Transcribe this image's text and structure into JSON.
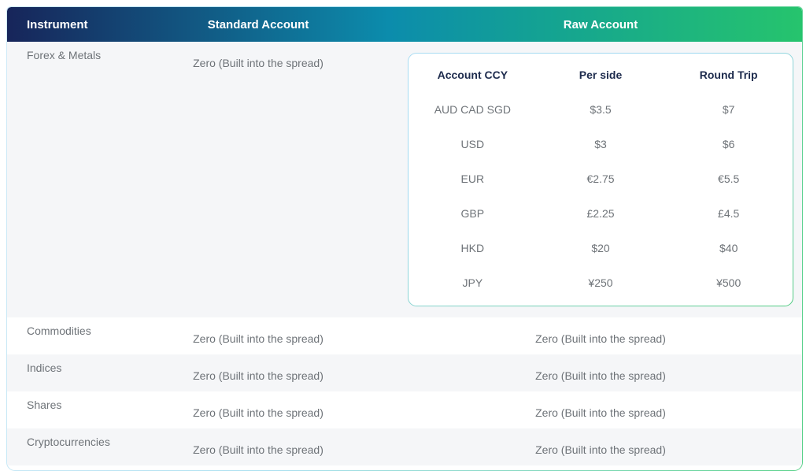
{
  "table": {
    "columns": [
      "Instrument",
      "Standard Account",
      "Raw Account"
    ],
    "rows": [
      {
        "instrument": "Forex & Metals",
        "standard": "Zero (Built into the spread)"
      },
      {
        "instrument": "Commodities",
        "standard": "Zero (Built into the spread)",
        "raw": "Zero (Built into the spread)"
      },
      {
        "instrument": "Indices",
        "standard": "Zero (Built into the spread)",
        "raw": "Zero (Built into the spread)"
      },
      {
        "instrument": "Shares",
        "standard": "Zero (Built into the spread)",
        "raw": "Zero (Built into the spread)"
      },
      {
        "instrument": "Cryptocurrencies",
        "standard": "Zero (Built into the spread)",
        "raw": "Zero (Built into the spread)"
      }
    ]
  },
  "raw_table": {
    "headers": [
      "Account CCY",
      "Per side",
      "Round Trip"
    ],
    "rows": [
      [
        "AUD CAD SGD",
        "$3.5",
        "$7"
      ],
      [
        "USD",
        "$3",
        "$6"
      ],
      [
        "EUR",
        "€2.75",
        "€5.5"
      ],
      [
        "GBP",
        "£2.25",
        "£4.5"
      ],
      [
        "HKD",
        "$20",
        "$40"
      ],
      [
        "JPY",
        "¥250",
        "¥500"
      ]
    ]
  },
  "colors": {
    "header_gradient_start": "#17255A",
    "header_gradient_mid": "#0C8CAC",
    "header_gradient_end": "#26C46D",
    "shaded_row": "#F5F6F8",
    "body_text": "#6E7378",
    "nested_header_text": "#1D2B4D",
    "outer_border_start": "#CFEAF7",
    "outer_border_end": "#59D189",
    "nested_border_start": "#A9DCF2",
    "nested_border_end": "#50CB81"
  }
}
